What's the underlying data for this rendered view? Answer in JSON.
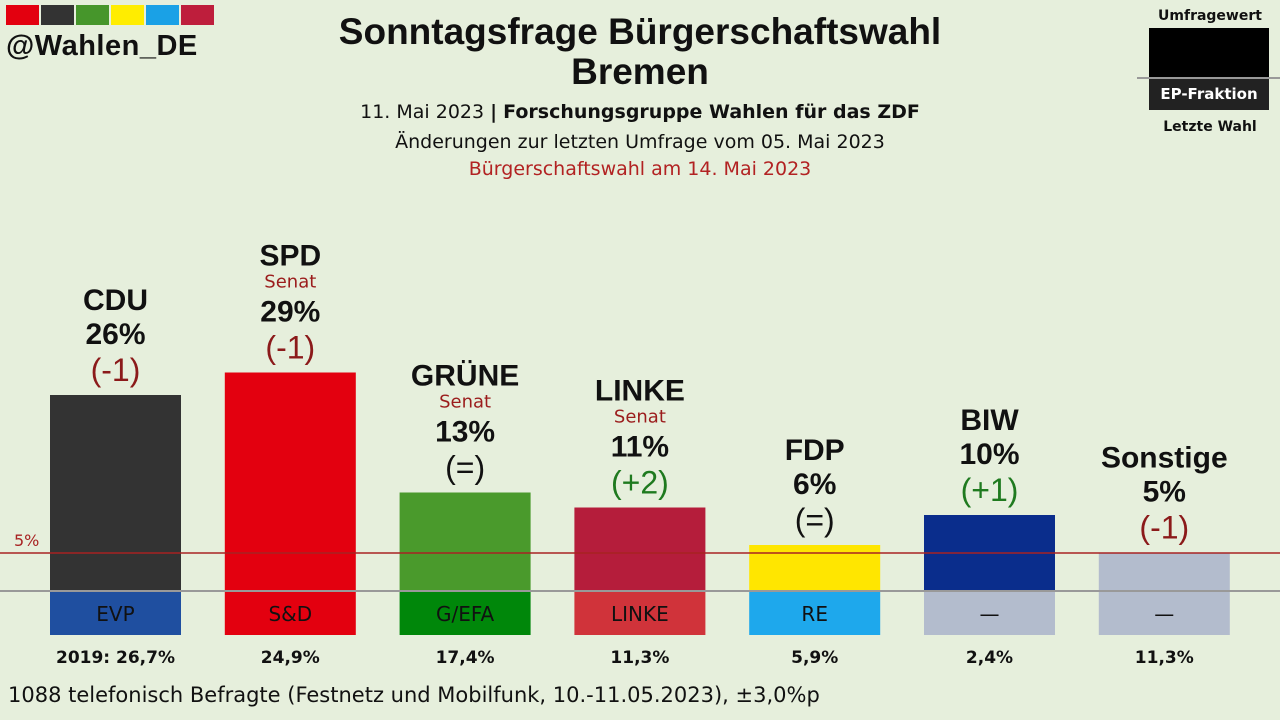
{
  "branding": {
    "handle": "@Wahlen_DE",
    "flag_colors": [
      "#e3000f",
      "#333333",
      "#46962b",
      "#ffed00",
      "#1aa1e6",
      "#be1e3c"
    ]
  },
  "header": {
    "title_line1": "Sonntagsfrage Bürgerschaftswahl",
    "title_line2": "Bremen",
    "date": "11. Mai 2023",
    "separator": "|",
    "institute": "Forschungsgruppe Wahlen für das ZDF",
    "changes_note": "Änderungen zur letzten Umfrage vom 05. Mai 2023",
    "election_note": "Bürgerschaftswahl am 14. Mai 2023",
    "election_note_color": "#b22222"
  },
  "legend": {
    "top_label": "Umfragewert",
    "ep_label": "EP-Fraktion",
    "bottom_label": "Letzte Wahl"
  },
  "chart_data": {
    "type": "bar",
    "categories": [
      "CDU",
      "SPD",
      "GRÜNE",
      "LINKE",
      "FDP",
      "BIW",
      "Sonstige"
    ],
    "values": [
      26,
      29,
      13,
      11,
      6,
      10,
      5
    ],
    "value_labels": [
      "26%",
      "29%",
      "13%",
      "11%",
      "6%",
      "10%",
      "5%"
    ],
    "changes": [
      "(-1)",
      "(-1)",
      "(=)",
      "(+2)",
      "(=)",
      "(+1)",
      "(-1)"
    ],
    "change_colors": [
      "#8b1a1a",
      "#8b1a1a",
      "#111111",
      "#1f7a1f",
      "#111111",
      "#1f7a1f",
      "#8b1a1a"
    ],
    "senat": [
      "",
      "Senat",
      "Senat",
      "Senat",
      "",
      "",
      ""
    ],
    "colors": [
      "#333333",
      "#e3000f",
      "#4a9a2c",
      "#b51d3b",
      "#ffe600",
      "#0a2d8c",
      "#b3bccd"
    ],
    "ep_groups": [
      "EVP",
      "S&D",
      "G/EFA",
      "LINKE",
      "RE",
      "—",
      "—"
    ],
    "ep_colors": [
      "#1f4fa0",
      "#e3000f",
      "#00870a",
      "#d0333a",
      "#1ea8ec",
      "#b3bccd",
      "#b3bccd"
    ],
    "last_election": [
      "2019: 26,7%",
      "24,9%",
      "17,4%",
      "11,3%",
      "5,9%",
      "2,4%",
      "11,3%"
    ],
    "threshold_value": 5,
    "threshold_label": "5%",
    "threshold_color": "#a82323",
    "ylim": [
      0,
      30
    ],
    "title": "Sonntagsfrage Bürgerschaftswahl Bremen",
    "xlabel": "",
    "ylabel": "",
    "grid": false
  },
  "footer": {
    "note": "1088 telefonisch Befragte (Festnetz und Mobilfunk, 10.-11.05.2023), ±3,0%p"
  }
}
